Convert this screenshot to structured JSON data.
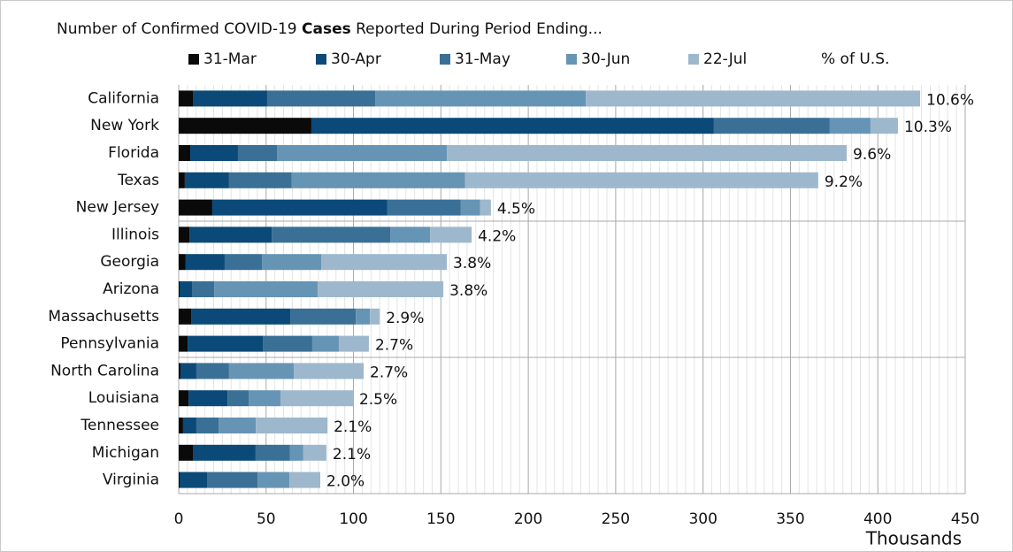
{
  "chart_data": {
    "type": "stacked-bar-horizontal",
    "title": {
      "before": "Number of Confirmed COVID-19 ",
      "bold": "Cases",
      "after": " Reported During Period Ending..."
    },
    "x_label": "Thousands",
    "categories": [
      "California",
      "New York",
      "Florida",
      "Texas",
      "New Jersey",
      "Illinois",
      "Georgia",
      "Arizona",
      "Massachusetts",
      "Pennsylvania",
      "North Carolina",
      "Louisiana",
      "Tennessee",
      "Michigan",
      "Virginia"
    ],
    "series": [
      {
        "name": "31-Mar",
        "color": "#0a0a0a",
        "values": [
          8.1,
          75.9,
          6.6,
          3.5,
          19.2,
          6.1,
          4.0,
          0.5,
          7.1,
          5.1,
          1.0,
          5.6,
          2.5,
          8.1,
          0.5
        ]
      },
      {
        "name": "30-Apr",
        "color": "#0b4a78",
        "values": [
          42.5,
          230.3,
          27.3,
          25.3,
          100.2,
          47.1,
          22.3,
          7.1,
          56.7,
          43.0,
          9.1,
          22.3,
          7.6,
          35.9,
          15.7
        ]
      },
      {
        "name": "31-May",
        "color": "#3a7096",
        "values": [
          61.8,
          66.3,
          22.3,
          35.9,
          42.0,
          67.8,
          21.3,
          12.7,
          37.5,
          28.3,
          18.7,
          12.1,
          12.7,
          19.7,
          28.9
        ]
      },
      {
        "name": "30-Jun",
        "color": "#6694b5",
        "values": [
          120.5,
          23.3,
          97.2,
          99.2,
          11.1,
          22.8,
          33.9,
          59.2,
          8.1,
          15.2,
          37.0,
          18.2,
          21.3,
          7.6,
          18.2
        ]
      },
      {
        "name": "22-Jul",
        "color": "#9db8cd",
        "values": [
          191.3,
          15.7,
          228.8,
          202.0,
          6.1,
          23.8,
          71.9,
          71.9,
          5.6,
          17.2,
          40.0,
          41.5,
          41.0,
          13.2,
          17.7
        ]
      }
    ],
    "share": {
      "name": "% of U.S.",
      "values": [
        10.6,
        10.3,
        9.6,
        9.2,
        4.5,
        4.2,
        3.8,
        3.8,
        2.9,
        2.7,
        2.7,
        2.5,
        2.1,
        2.1,
        2.0
      ],
      "value_labels": [
        "10.6%",
        "10.3%",
        "9.6%",
        "9.2%",
        "4.5%",
        "4.2%",
        "3.8%",
        "3.8%",
        "2.9%",
        "2.7%",
        "2.7%",
        "2.5%",
        "2.1%",
        "2.1%",
        "2.0%"
      ]
    },
    "xlim": [
      0,
      450
    ],
    "xticks": [
      0,
      50,
      100,
      150,
      200,
      250,
      300,
      350,
      400,
      450
    ],
    "grid": true
  }
}
